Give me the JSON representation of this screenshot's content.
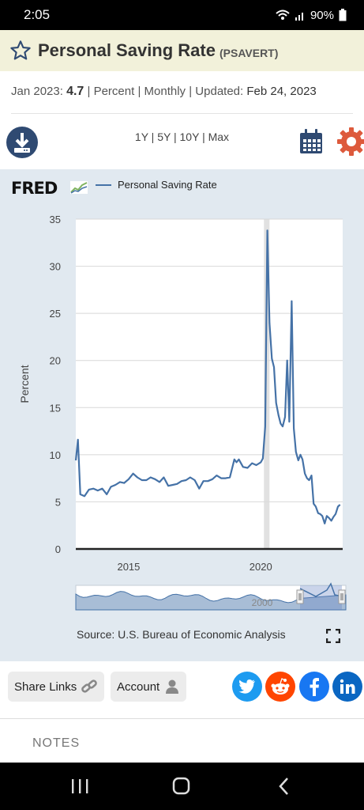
{
  "status_bar": {
    "time": "2:05",
    "battery": "90%"
  },
  "header": {
    "title": "Personal Saving Rate",
    "series_id": "(PSAVERT)"
  },
  "meta": {
    "period": "Jan 2023:",
    "value": "4.7",
    "units": "Percent",
    "frequency": "Monthly",
    "updated_label": "Updated:",
    "updated_date": "Feb 24, 2023"
  },
  "toolbar": {
    "ranges": [
      "1Y",
      "5Y",
      "10Y",
      "Max"
    ]
  },
  "chart": {
    "logo": "FRED",
    "legend_label": "Personal Saving Rate",
    "source": "Source: U.S. Bureau of Economic Analysis"
  },
  "chart_data": {
    "type": "line",
    "ylabel": "Percent",
    "ylim": [
      0,
      35
    ],
    "yticks": [
      0,
      5,
      10,
      15,
      20,
      25,
      30,
      35
    ],
    "xticks": [
      2015,
      2020
    ],
    "xlim": [
      2013.0,
      2023.1
    ],
    "line_color": "#4572a7",
    "recession_band": [
      2020.12,
      2020.33
    ],
    "grid": true,
    "legend_position": "top",
    "navigator_label": "2000",
    "series": [
      {
        "name": "Personal Saving Rate",
        "x": [
          2013.0,
          2013.08,
          2013.17,
          2013.33,
          2013.5,
          2013.67,
          2013.83,
          2014.0,
          2014.17,
          2014.33,
          2014.5,
          2014.67,
          2014.83,
          2015.0,
          2015.17,
          2015.33,
          2015.5,
          2015.67,
          2015.83,
          2016.0,
          2016.17,
          2016.33,
          2016.5,
          2016.67,
          2016.83,
          2017.0,
          2017.17,
          2017.33,
          2017.5,
          2017.67,
          2017.83,
          2018.0,
          2018.17,
          2018.33,
          2018.5,
          2018.67,
          2018.83,
          2019.0,
          2019.08,
          2019.17,
          2019.33,
          2019.5,
          2019.67,
          2019.83,
          2020.0,
          2020.08,
          2020.17,
          2020.25,
          2020.33,
          2020.42,
          2020.5,
          2020.58,
          2020.67,
          2020.75,
          2020.83,
          2020.92,
          2021.0,
          2021.08,
          2021.17,
          2021.25,
          2021.33,
          2021.42,
          2021.5,
          2021.58,
          2021.67,
          2021.75,
          2021.83,
          2021.92,
          2022.0,
          2022.08,
          2022.17,
          2022.25,
          2022.33,
          2022.42,
          2022.5,
          2022.58,
          2022.67,
          2022.75,
          2022.83,
          2022.92,
          2023.0
        ],
        "values": [
          9.4,
          11.6,
          5.8,
          5.6,
          6.3,
          6.4,
          6.2,
          6.4,
          5.8,
          6.6,
          6.8,
          7.1,
          7.0,
          7.4,
          8.0,
          7.6,
          7.3,
          7.3,
          7.6,
          7.4,
          7.1,
          7.6,
          6.7,
          6.8,
          6.9,
          7.2,
          7.3,
          7.6,
          7.3,
          6.4,
          7.2,
          7.2,
          7.4,
          7.8,
          7.5,
          7.5,
          7.6,
          9.5,
          9.2,
          9.5,
          8.7,
          8.6,
          9.1,
          8.9,
          9.2,
          9.6,
          13.0,
          33.8,
          24.0,
          20.2,
          19.3,
          15.5,
          14.2,
          13.3,
          13.0,
          14.0,
          20.0,
          13.5,
          26.3,
          12.8,
          10.3,
          9.4,
          10.0,
          9.5,
          8.0,
          7.5,
          7.3,
          7.8,
          4.8,
          4.5,
          3.8,
          3.7,
          3.5,
          2.7,
          3.5,
          3.3,
          3.0,
          3.4,
          3.7,
          4.5,
          4.7
        ]
      }
    ]
  },
  "bottom": {
    "share_label": "Share Links",
    "account_label": "Account",
    "notes_label": "NOTES"
  },
  "colors": {
    "brand_navy": "#2f4a72",
    "gear_orange": "#dd5a3c",
    "twitter": "#1d9bf0",
    "reddit": "#ff4500",
    "facebook": "#1877f2",
    "linkedin": "#0a66c2"
  }
}
